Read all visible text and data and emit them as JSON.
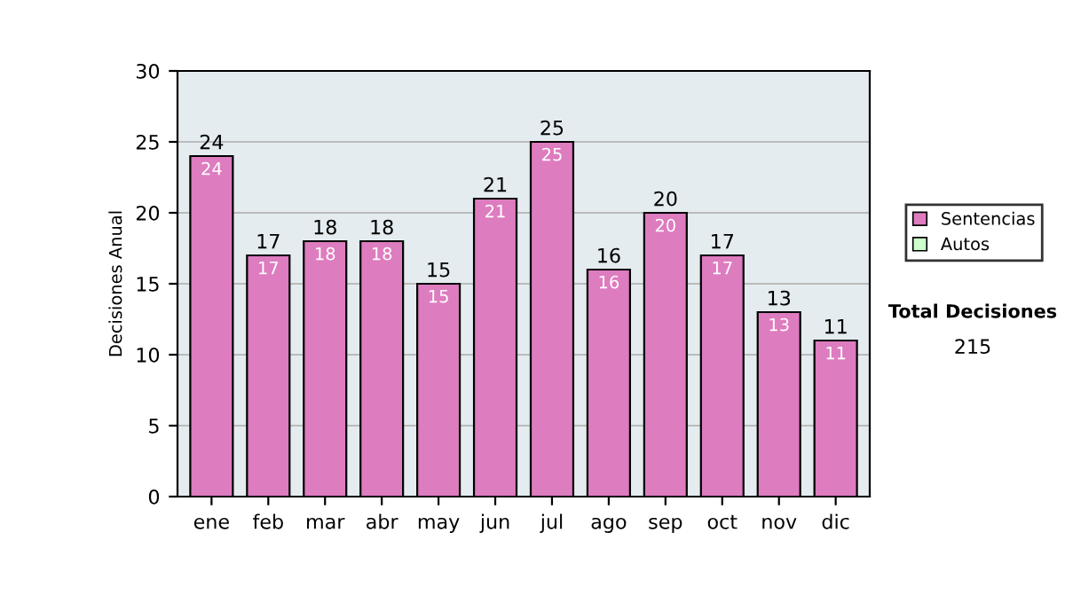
{
  "chart_data": {
    "type": "bar",
    "ylabel": "Decisiones Anual",
    "categories": [
      "ene",
      "feb",
      "mar",
      "abr",
      "may",
      "jun",
      "jul",
      "ago",
      "sep",
      "oct",
      "nov",
      "dic"
    ],
    "series": [
      {
        "name": "Sentencias",
        "color": "#de7cc0",
        "values": [
          24,
          17,
          18,
          18,
          15,
          21,
          25,
          16,
          20,
          17,
          13,
          11
        ],
        "value_labels": [
          "24",
          "17",
          "18",
          "18",
          "15",
          "21",
          "25",
          "16",
          "20",
          "17",
          "13",
          "11"
        ]
      },
      {
        "name": "Autos",
        "color": "#ccffcc",
        "values": [
          0,
          0,
          0,
          0,
          0,
          0,
          0,
          0,
          0,
          0,
          0,
          0
        ]
      }
    ],
    "stacked": true,
    "totals": [
      "24",
      "17",
      "18",
      "18",
      "15",
      "21",
      "25",
      "16",
      "20",
      "17",
      "13",
      "11"
    ],
    "ylim": [
      0,
      30
    ],
    "yticks": [
      0,
      5,
      10,
      15,
      20,
      25,
      30
    ],
    "grid": "y",
    "legend": "right",
    "annotations": [
      "Total Decisiones",
      "215"
    ]
  }
}
